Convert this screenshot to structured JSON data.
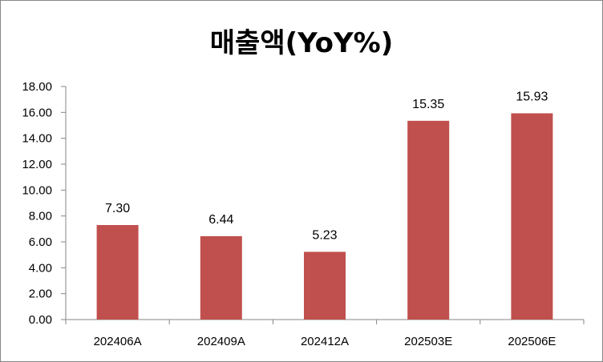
{
  "chart_data": {
    "type": "bar",
    "title": "매출액(YoY%)",
    "xlabel": "",
    "ylabel": "",
    "categories": [
      "202406A",
      "202409A",
      "202412A",
      "202503E",
      "202506E"
    ],
    "values": [
      7.3,
      6.44,
      5.23,
      15.35,
      15.93
    ],
    "value_labels": [
      "7.30",
      "6.44",
      "5.23",
      "15.35",
      "15.93"
    ],
    "ylim": [
      0,
      18
    ],
    "yticks": [
      "0.00",
      "2.00",
      "4.00",
      "6.00",
      "8.00",
      "10.00",
      "12.00",
      "14.00",
      "16.00",
      "18.00"
    ],
    "grid": false,
    "legend": "none",
    "bar_color": "#C0504D"
  }
}
